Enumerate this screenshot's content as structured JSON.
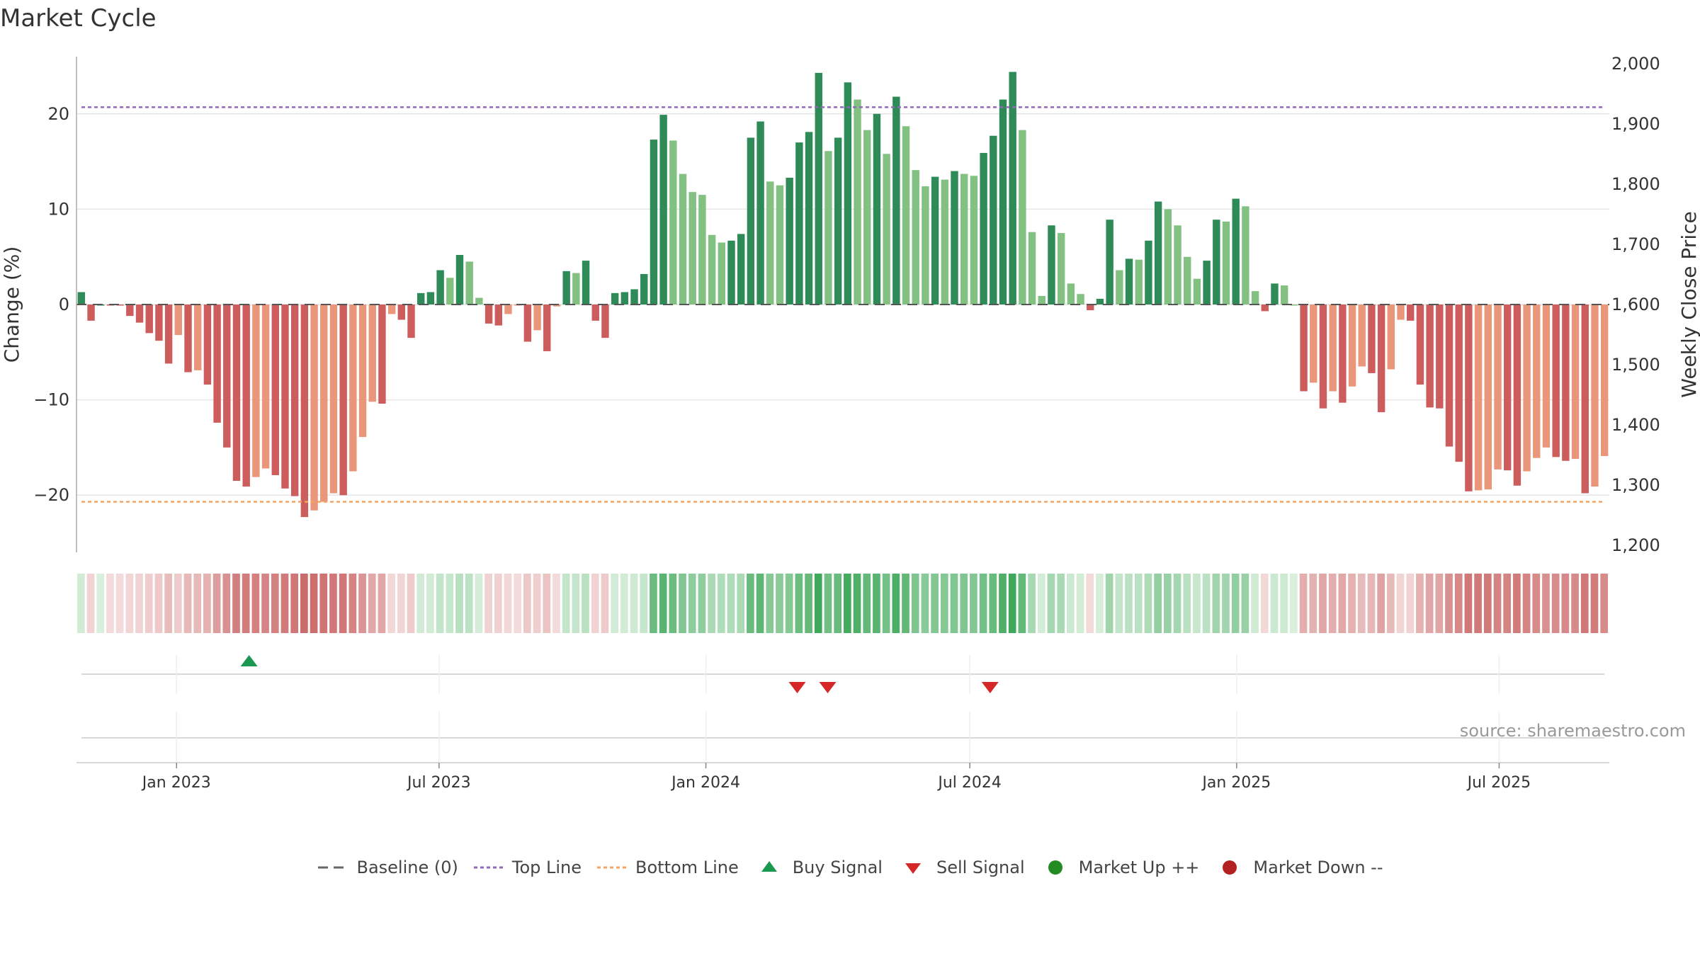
{
  "title": "Market Cycle",
  "chart_data": {
    "type": "bar",
    "title": "Market Cycle",
    "ylabel_left": "Change (%)",
    "ylabel_right": "Weekly Close Price",
    "ylim_left": [
      -26,
      26
    ],
    "ylim_right": [
      1200,
      2000
    ],
    "yticks_left": [
      "20",
      "10",
      "0",
      "−10",
      "−20"
    ],
    "yticks_left_values": [
      20,
      10,
      0,
      -10,
      -20
    ],
    "yticks_right": [
      "2,000",
      "1,900",
      "1,800",
      "1,700",
      "1,600",
      "1,500",
      "1,400",
      "1,300",
      "1,200"
    ],
    "yticks_right_values": [
      2000,
      1900,
      1800,
      1700,
      1600,
      1500,
      1400,
      1300,
      1200
    ],
    "top_line": 20.7,
    "bottom_line": -20.7,
    "x_start": "2022-10-24",
    "x_end": "2025-09-15",
    "xticks": [
      {
        "label": "Jan 2023",
        "date": "2023-01-01"
      },
      {
        "label": "Jul 2023",
        "date": "2023-07-01"
      },
      {
        "label": "Jan 2024",
        "date": "2024-01-01"
      },
      {
        "label": "Jul 2024",
        "date": "2024-07-01"
      },
      {
        "label": "Jan 2025",
        "date": "2025-01-01"
      },
      {
        "label": "Jul 2025",
        "date": "2025-07-01"
      }
    ],
    "values": [
      1.3,
      -1.7,
      0.0,
      -0.1,
      -0.1,
      -1.2,
      -1.9,
      -3.0,
      -3.8,
      -6.2,
      -3.2,
      -7.1,
      -6.9,
      -8.4,
      -12.4,
      -15.0,
      -18.5,
      -19.1,
      -18.1,
      -17.2,
      -17.9,
      -19.3,
      -20.1,
      -22.3,
      -21.6,
      -20.7,
      -19.8,
      -20.0,
      -17.5,
      -13.9,
      -10.2,
      -10.4,
      -1.0,
      -1.6,
      -3.5,
      1.2,
      1.3,
      3.6,
      2.8,
      5.2,
      4.5,
      0.7,
      -2.0,
      -2.2,
      -1.0,
      -0.1,
      -3.9,
      -2.7,
      -4.9,
      -0.2,
      3.5,
      3.3,
      4.6,
      -1.7,
      -3.5,
      1.2,
      1.3,
      1.6,
      3.2,
      17.3,
      19.9,
      17.2,
      13.7,
      11.8,
      11.5,
      7.3,
      6.5,
      6.7,
      7.4,
      17.5,
      19.2,
      12.9,
      12.5,
      13.3,
      17.0,
      18.1,
      24.3,
      16.1,
      17.5,
      23.3,
      21.5,
      18.3,
      20.0,
      15.8,
      21.8,
      18.7,
      14.1,
      12.4,
      13.4,
      13.1,
      14.0,
      13.7,
      13.5,
      15.9,
      17.7,
      21.5,
      24.4,
      18.3,
      7.6,
      0.9,
      8.3,
      7.5,
      2.2,
      1.1,
      -0.6,
      0.6,
      8.9,
      3.6,
      4.8,
      4.7,
      6.7,
      10.8,
      10.0,
      8.3,
      5.0,
      2.7,
      4.6,
      8.9,
      8.7,
      11.1,
      10.3,
      1.4,
      -0.7,
      2.2,
      2.0,
      0.0,
      -9.1,
      -8.2,
      -10.9,
      -9.1,
      -10.3,
      -8.6,
      -6.5,
      -7.2,
      -11.3,
      -6.8,
      -1.6,
      -1.7,
      -8.4,
      -10.8,
      -10.9,
      -14.9,
      -16.5,
      -19.6,
      -19.5,
      -19.4,
      -17.3,
      -17.4,
      -19.0,
      -17.5,
      -16.1,
      -15.0,
      -16.0,
      -16.4,
      -16.2,
      -19.8,
      -19.1,
      -15.9
    ],
    "buy_signal_dates": [
      "2023-02-20"
    ],
    "sell_signal_dates": [
      "2024-03-04",
      "2024-03-25",
      "2024-07-15"
    ],
    "colors": {
      "up_strong": "#2e8b57",
      "up_light": "#82c182",
      "down_strong": "#cd5c5c",
      "down_light": "#e9967a",
      "top_line": "#9467bd",
      "bottom_line": "#f4a460",
      "buy": "#1a9850",
      "sell": "#d62728",
      "market_up": "#228b22",
      "market_down": "#b22222"
    }
  },
  "source": "source: sharemaestro.com",
  "legend": [
    {
      "key": "baseline",
      "label": "Baseline (0)"
    },
    {
      "key": "top",
      "label": "Top Line"
    },
    {
      "key": "bottom",
      "label": "Bottom Line"
    },
    {
      "key": "buy",
      "label": "Buy Signal"
    },
    {
      "key": "sell",
      "label": "Sell Signal"
    },
    {
      "key": "up",
      "label": "Market Up ++"
    },
    {
      "key": "down",
      "label": "Market Down --"
    }
  ]
}
